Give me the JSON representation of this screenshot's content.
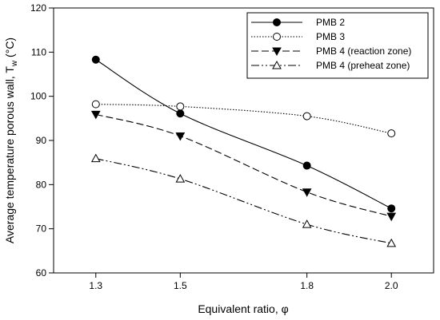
{
  "chart_data": {
    "type": "line",
    "xlabel": "Equivalent ratio, φ",
    "ylabel_main": "Average temperature porous wall, T",
    "ylabel_sub": "w",
    "ylabel_unit": " (°C)",
    "x_ticks": [
      "1.3",
      "1.5",
      "1.8",
      "2.0"
    ],
    "x": [
      1.3,
      1.5,
      1.8,
      2.0
    ],
    "xlim": [
      1.2,
      2.1
    ],
    "ylim": [
      60,
      120
    ],
    "y_ticks": [
      60,
      70,
      80,
      90,
      100,
      110,
      120
    ],
    "legend_position": "top-right",
    "grid": false,
    "series": [
      {
        "name": "PMB 2",
        "values": [
          108.3,
          96.1,
          84.3,
          74.6
        ],
        "line": "solid",
        "marker": "filled-circle"
      },
      {
        "name": "PMB 3",
        "values": [
          98.2,
          97.7,
          95.5,
          91.6
        ],
        "line": "dotted",
        "marker": "open-circle"
      },
      {
        "name": "PMB 4 (reaction zone)",
        "values": [
          95.9,
          91.0,
          78.3,
          72.8
        ],
        "line": "dashed",
        "marker": "filled-triangle-down"
      },
      {
        "name": "PMB 4 (preheat zone)",
        "values": [
          85.9,
          81.3,
          71.0,
          66.7
        ],
        "line": "dash-dot-dot",
        "marker": "open-triangle-up"
      }
    ]
  }
}
